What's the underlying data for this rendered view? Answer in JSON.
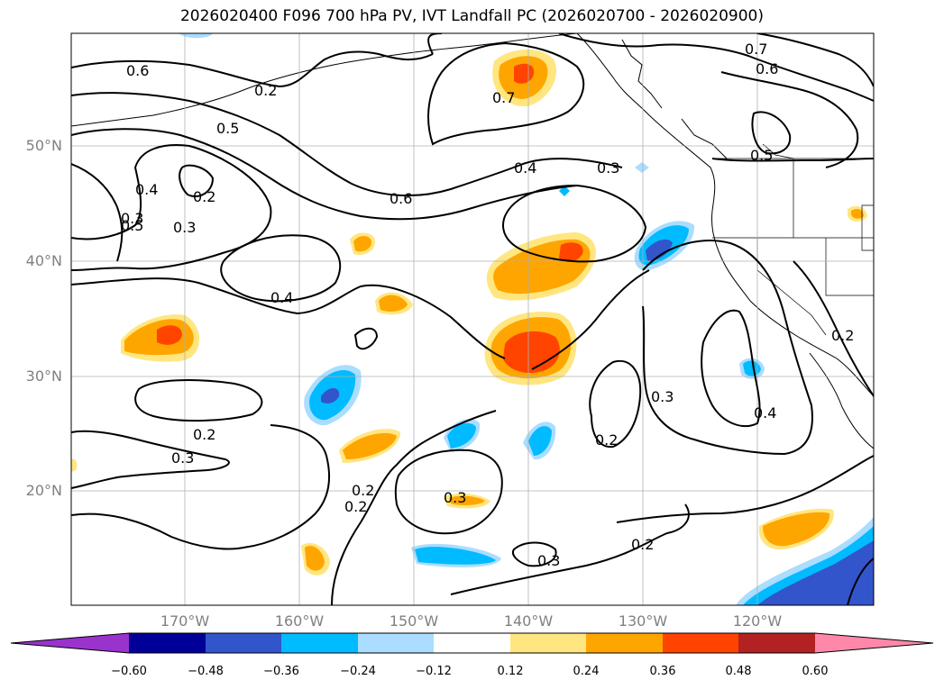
{
  "title": "2026020400 F096 700 hPa PV, IVT Landfall PC (2026020700 - 2026020900)",
  "map": {
    "region": "North Pacific",
    "lat_labels": [
      "50°N",
      "40°N",
      "30°N",
      "20°N"
    ],
    "lon_labels": [
      "170°W",
      "160°W",
      "150°W",
      "140°W",
      "130°W",
      "120°W"
    ],
    "contour_labels": [
      "0.6",
      "0.5",
      "0.4",
      "0.3",
      "0.2",
      "0.7",
      "0.6",
      "0.4",
      "0.3",
      "0.5",
      "0.7",
      "0.6",
      "0.4",
      "0.2",
      "0.3",
      "0.2",
      "0.3",
      "0.2",
      "0.3",
      "0.3",
      "0.2",
      "0.4",
      "0.3",
      "0.2",
      "0.5",
      "0.2",
      "0.2"
    ]
  },
  "colorbar": {
    "ticks": [
      "−0.60",
      "−0.48",
      "−0.36",
      "−0.24",
      "−0.12",
      "0.12",
      "0.24",
      "0.36",
      "0.48",
      "0.60"
    ],
    "colors": [
      "#9933cc",
      "#000099",
      "#3355cc",
      "#00bbff",
      "#aaddff",
      "#ffffff",
      "#ffe680",
      "#ffa500",
      "#ff4400",
      "#b22222",
      "#ff88aa"
    ]
  }
}
